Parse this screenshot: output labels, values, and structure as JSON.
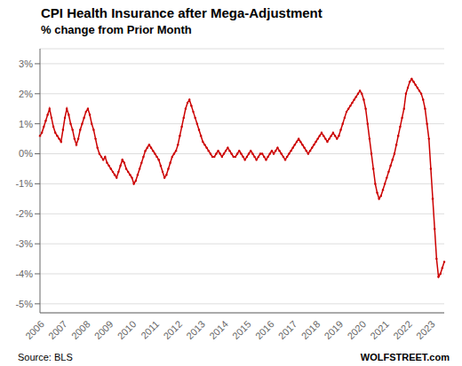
{
  "chart_data": {
    "type": "line",
    "title": "CPI Health Insurance after Mega-Adjustment",
    "subtitle": "% change from Prior Month",
    "annotations": [
      "Source: BLS",
      "WOLFSTREET.com"
    ],
    "color": "#CC0000",
    "marker": "o",
    "grid": true,
    "categories": [
      "2006",
      null,
      null,
      null,
      null,
      null,
      null,
      null,
      null,
      null,
      null,
      null,
      "2007",
      null,
      null,
      null,
      null,
      null,
      null,
      null,
      null,
      null,
      null,
      null,
      "2008",
      null,
      null,
      null,
      null,
      null,
      null,
      null,
      null,
      null,
      null,
      null,
      "2009",
      null,
      null,
      null,
      null,
      null,
      null,
      null,
      null,
      null,
      null,
      null,
      "2010",
      null,
      null,
      null,
      null,
      null,
      null,
      null,
      null,
      null,
      null,
      null,
      "2011",
      null,
      null,
      null,
      null,
      null,
      null,
      null,
      null,
      null,
      null,
      null,
      "2012",
      null,
      null,
      null,
      null,
      null,
      null,
      null,
      null,
      null,
      null,
      null,
      "2013",
      null,
      null,
      null,
      null,
      null,
      null,
      null,
      null,
      null,
      null,
      null,
      "2014",
      null,
      null,
      null,
      null,
      null,
      null,
      null,
      null,
      null,
      null,
      null,
      "2015",
      null,
      null,
      null,
      null,
      null,
      null,
      null,
      null,
      null,
      null,
      null,
      "2016",
      null,
      null,
      null,
      null,
      null,
      null,
      null,
      null,
      null,
      null,
      null,
      "2017",
      null,
      null,
      null,
      null,
      null,
      null,
      null,
      null,
      null,
      null,
      null,
      "2018",
      null,
      null,
      null,
      null,
      null,
      null,
      null,
      null,
      null,
      null,
      null,
      "2019",
      null,
      null,
      null,
      null,
      null,
      null,
      null,
      null,
      null,
      null,
      null,
      "2020",
      null,
      null,
      null,
      null,
      null,
      null,
      null,
      null,
      null,
      null,
      null,
      "2021",
      null,
      null,
      null,
      null,
      null,
      null,
      null,
      null,
      null,
      null,
      null,
      "2022",
      null,
      null,
      null,
      null,
      null,
      null,
      null,
      null,
      null,
      null,
      null,
      "2023",
      null,
      null,
      null,
      null,
      null,
      null,
      null
    ],
    "values": [
      0.6,
      0.7,
      0.9,
      1.1,
      1.3,
      1.5,
      1.2,
      0.9,
      0.7,
      0.6,
      0.5,
      0.4,
      0.8,
      1.2,
      1.5,
      1.3,
      1.0,
      0.8,
      0.5,
      0.3,
      0.5,
      0.8,
      1.0,
      1.2,
      1.4,
      1.5,
      1.3,
      1.0,
      0.8,
      0.5,
      0.2,
      0.0,
      -0.1,
      -0.2,
      -0.1,
      -0.3,
      -0.4,
      -0.5,
      -0.6,
      -0.7,
      -0.8,
      -0.6,
      -0.4,
      -0.2,
      -0.3,
      -0.5,
      -0.6,
      -0.7,
      -0.8,
      -1.0,
      -0.9,
      -0.7,
      -0.5,
      -0.3,
      -0.1,
      0.1,
      0.2,
      0.3,
      0.2,
      0.1,
      0.0,
      -0.1,
      -0.2,
      -0.4,
      -0.6,
      -0.8,
      -0.7,
      -0.5,
      -0.3,
      -0.1,
      0.0,
      0.1,
      0.3,
      0.6,
      0.9,
      1.2,
      1.5,
      1.7,
      1.8,
      1.6,
      1.4,
      1.2,
      1.0,
      0.8,
      0.6,
      0.4,
      0.3,
      0.2,
      0.1,
      0.0,
      -0.1,
      -0.1,
      0.0,
      0.1,
      0.0,
      -0.1,
      0.0,
      0.1,
      0.2,
      0.1,
      0.0,
      -0.1,
      -0.1,
      0.0,
      0.1,
      0.0,
      -0.1,
      -0.2,
      -0.1,
      0.0,
      0.1,
      0.0,
      -0.1,
      -0.2,
      -0.1,
      0.0,
      0.0,
      -0.1,
      -0.2,
      -0.1,
      0.0,
      0.1,
      0.0,
      0.1,
      0.2,
      0.1,
      0.0,
      -0.1,
      -0.2,
      -0.1,
      0.0,
      0.1,
      0.2,
      0.3,
      0.4,
      0.5,
      0.4,
      0.3,
      0.2,
      0.1,
      0.0,
      0.1,
      0.2,
      0.3,
      0.4,
      0.5,
      0.6,
      0.7,
      0.6,
      0.5,
      0.4,
      0.5,
      0.6,
      0.7,
      0.6,
      0.5,
      0.6,
      0.8,
      1.0,
      1.2,
      1.4,
      1.5,
      1.6,
      1.7,
      1.8,
      1.9,
      2.0,
      2.1,
      2.0,
      1.8,
      1.5,
      1.0,
      0.5,
      0.0,
      -0.5,
      -1.0,
      -1.3,
      -1.5,
      -1.4,
      -1.2,
      -1.0,
      -0.8,
      -0.6,
      -0.4,
      -0.2,
      0.0,
      0.3,
      0.6,
      0.9,
      1.2,
      1.5,
      2.0,
      2.2,
      2.4,
      2.5,
      2.4,
      2.3,
      2.2,
      2.1,
      2.0,
      1.8,
      1.5,
      1.0,
      0.5,
      -0.5,
      -1.5,
      -2.5,
      -3.5,
      -4.1,
      -4.0,
      -3.8,
      -3.6
    ],
    "ylim": [
      -5.3,
      3.5
    ],
    "yticks": [
      {
        "value": 3,
        "label": "3%"
      },
      {
        "value": 2,
        "label": "2%"
      },
      {
        "value": 1,
        "label": "1%"
      },
      {
        "value": 0,
        "label": "0%"
      },
      {
        "value": -1,
        "label": "-1%"
      },
      {
        "value": -2,
        "label": "-2%"
      },
      {
        "value": -3,
        "label": "-3%"
      },
      {
        "value": -4,
        "label": "-4%"
      },
      {
        "value": -5,
        "label": "-5%"
      }
    ]
  }
}
